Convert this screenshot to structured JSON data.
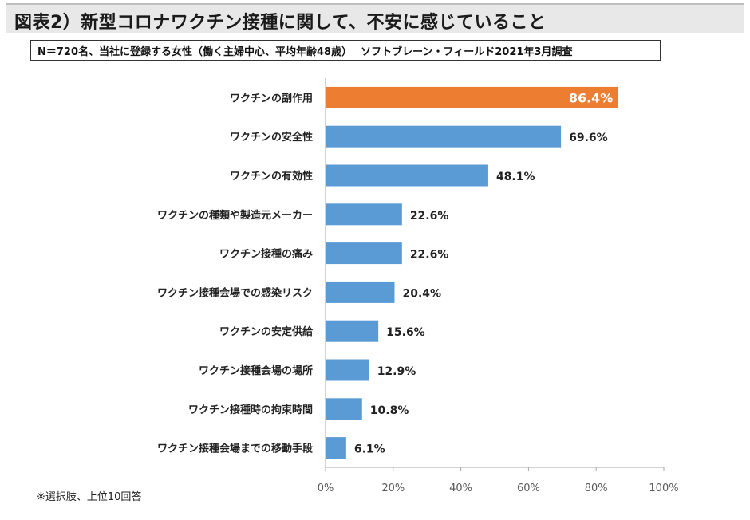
{
  "title": "図表2）新型コロナワクチン接種に関して、不安に感じていること",
  "subtitle": "N＝720名、当社に登録する女性（働く主婦中心、平均年齢48歳）　 ソフトブレーン・フィールド2021年3月調査",
  "footnote": "※選択肢、上位10回答",
  "colors": {
    "highlight": "#ed7d31",
    "bar": "#5b9bd5",
    "axis": "#a6a6a6",
    "highlight_label": "#ffffff"
  },
  "chart_data": {
    "type": "bar",
    "orientation": "horizontal",
    "title": "図表2）新型コロナワクチン接種に関して、不安に感じていること",
    "categories": [
      "ワクチンの副作用",
      "ワクチンの安全性",
      "ワクチンの有効性",
      "ワクチンの種類や製造元メーカー",
      "ワクチン接種の痛み",
      "ワクチン接種会場での感染リスク",
      "ワクチンの安定供給",
      "ワクチン接種会場の場所",
      "ワクチン接種時の拘束時間",
      "ワクチン接種会場までの移動手段"
    ],
    "values": [
      86.4,
      69.6,
      48.1,
      22.6,
      22.6,
      20.4,
      15.6,
      12.9,
      10.8,
      6.1
    ],
    "value_labels": [
      "86.4%",
      "69.6%",
      "48.1%",
      "22.6%",
      "22.6%",
      "20.4%",
      "15.6%",
      "12.9%",
      "10.8%",
      "6.1%"
    ],
    "highlight_index": 0,
    "xlim": [
      0,
      100
    ],
    "xticks": [
      0,
      20,
      40,
      60,
      80,
      100
    ],
    "xtick_labels": [
      "0%",
      "20%",
      "40%",
      "60%",
      "80%",
      "100%"
    ],
    "xlabel": "",
    "ylabel": "",
    "grid": false
  }
}
